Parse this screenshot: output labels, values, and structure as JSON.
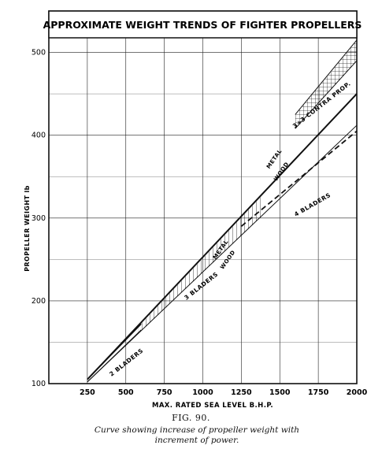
{
  "chart_data": {
    "type": "line",
    "title": "APPROXIMATE WEIGHT TRENDS OF FIGHTER PROPELLERS",
    "xlabel": "MAX. RATED SEA LEVEL B.H.P.",
    "ylabel": "PROPELLER WEIGHT lb",
    "xlim": [
      0,
      2000
    ],
    "ylim": [
      100,
      550
    ],
    "x_ticks": [
      250,
      500,
      750,
      1000,
      1250,
      1500,
      1750,
      2000
    ],
    "y_ticks": [
      100,
      200,
      300,
      400,
      500
    ],
    "grid": true,
    "series": [
      {
        "name": "METAL",
        "group": "2 BLADERS",
        "x": [
          250,
          600
        ],
        "y": [
          105,
          172
        ]
      },
      {
        "name": "WOOD",
        "group": "2 BLADERS",
        "x": [
          250,
          600
        ],
        "y": [
          102,
          165
        ]
      },
      {
        "name": "METAL",
        "group": "3 BLADERS",
        "x": [
          250,
          2000
        ],
        "y": [
          105,
          450
        ]
      },
      {
        "name": "WOOD",
        "group": "3 BLADERS",
        "x": [
          250,
          2000
        ],
        "y": [
          102,
          412
        ]
      },
      {
        "name": "4 BLADERS",
        "x": [
          1250,
          2000
        ],
        "y": [
          290,
          405
        ]
      },
      {
        "name": "METAL",
        "group": "3+3 CONTRA PROP.",
        "x": [
          1600,
          2000
        ],
        "y": [
          425,
          515
        ]
      },
      {
        "name": "WOOD",
        "group": "3+3 CONTRA PROP.",
        "x": [
          1600,
          2000
        ],
        "y": [
          408,
          490
        ]
      }
    ],
    "annotations": [
      "2 BLADERS",
      "3 BLADERS",
      "4 BLADERS",
      "3+3 CONTRA PROP.",
      "METAL",
      "WOOD",
      "METAL",
      "WOOD"
    ]
  },
  "figure": {
    "label": "FIG. 90.",
    "caption_line1": "Curve showing increase of propeller weight with",
    "caption_line2": "increment of power."
  }
}
